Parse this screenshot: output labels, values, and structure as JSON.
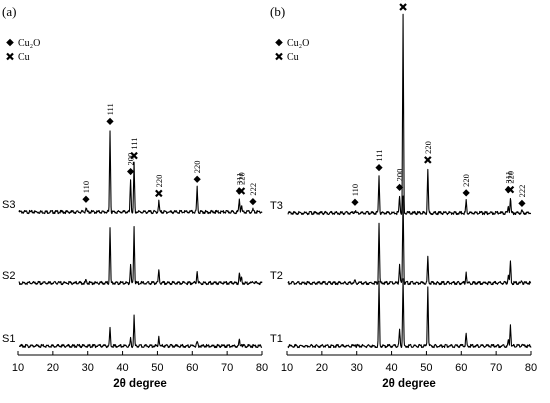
{
  "chart_data": [
    {
      "type": "line",
      "panel_label": "(a)",
      "xlabel": "2θ degree",
      "xlim": [
        10,
        80
      ],
      "xticks": [
        10,
        20,
        30,
        40,
        50,
        60,
        70,
        80
      ],
      "legend": [
        {
          "symbol": "diamond",
          "label": "Cu₂O"
        },
        {
          "symbol": "cross",
          "label": "Cu"
        }
      ],
      "legend_position": "top-left",
      "series": [
        {
          "name": "S3",
          "peaks": [
            [
              29.5,
              8
            ],
            [
              36.4,
              140
            ],
            [
              42.3,
              55
            ],
            [
              43.3,
              82
            ],
            [
              50.4,
              18
            ],
            [
              61.4,
              42
            ],
            [
              73.5,
              22
            ],
            [
              74.1,
              12
            ],
            [
              77.4,
              4
            ]
          ]
        },
        {
          "name": "S2",
          "peaks": [
            [
              29.5,
              5
            ],
            [
              36.4,
              96
            ],
            [
              42.3,
              32
            ],
            [
              43.3,
              96
            ],
            [
              50.4,
              22
            ],
            [
              61.4,
              22
            ],
            [
              73.5,
              18
            ],
            [
              74.1,
              10
            ],
            [
              77.4,
              3
            ]
          ]
        },
        {
          "name": "S1",
          "peaks": [
            [
              36.4,
              30
            ],
            [
              42.3,
              12
            ],
            [
              43.3,
              50
            ],
            [
              50.4,
              18
            ],
            [
              61.4,
              7
            ],
            [
              73.5,
              10
            ],
            [
              74.1,
              4
            ]
          ]
        }
      ],
      "annotations": [
        {
          "x": 29.5,
          "symbol": "diamond",
          "text": "110"
        },
        {
          "x": 36.4,
          "symbol": "diamond",
          "text": "111"
        },
        {
          "x": 42.3,
          "symbol": "diamond",
          "text": "200"
        },
        {
          "x": 43.3,
          "symbol": "cross",
          "text": "111"
        },
        {
          "x": 50.4,
          "symbol": "cross",
          "text": "220"
        },
        {
          "x": 61.4,
          "symbol": "diamond",
          "text": "220"
        },
        {
          "x": 73.5,
          "symbol": "diamond",
          "text": "311"
        },
        {
          "x": 74.1,
          "symbol": "cross",
          "text": "220"
        },
        {
          "x": 77.4,
          "symbol": "diamond",
          "text": "222"
        }
      ]
    },
    {
      "type": "line",
      "panel_label": "(b)",
      "xlabel": "2θ degree",
      "xlim": [
        10,
        80
      ],
      "xticks": [
        10,
        20,
        30,
        40,
        50,
        60,
        70,
        80
      ],
      "legend": [
        {
          "symbol": "diamond",
          "label": "Cu₂O"
        },
        {
          "symbol": "cross",
          "label": "Cu"
        }
      ],
      "legend_position": "top-left",
      "series": [
        {
          "name": "T3",
          "peaks": [
            [
              29.5,
              5
            ],
            [
              36.4,
              68
            ],
            [
              42.3,
              32
            ],
            [
              43.3,
              360
            ],
            [
              50.4,
              82
            ],
            [
              61.4,
              22
            ],
            [
              73.5,
              12
            ],
            [
              74.1,
              28
            ],
            [
              77.4,
              3
            ]
          ]
        },
        {
          "name": "T2",
          "peaks": [
            [
              29.5,
              4
            ],
            [
              36.4,
              110
            ],
            [
              42.3,
              35
            ],
            [
              43.3,
              160
            ],
            [
              50.4,
              48
            ],
            [
              61.4,
              20
            ],
            [
              73.5,
              15
            ],
            [
              74.1,
              40
            ],
            [
              77.4,
              3
            ]
          ]
        },
        {
          "name": "T1",
          "peaks": [
            [
              29.5,
              4
            ],
            [
              36.4,
              115
            ],
            [
              42.3,
              30
            ],
            [
              43.3,
              125
            ],
            [
              50.4,
              110
            ],
            [
              61.4,
              22
            ],
            [
              73.5,
              10
            ],
            [
              74.1,
              40
            ],
            [
              77.4,
              3
            ]
          ]
        }
      ],
      "annotations": [
        {
          "x": 29.5,
          "symbol": "diamond",
          "text": "110"
        },
        {
          "x": 36.4,
          "symbol": "diamond",
          "text": "111"
        },
        {
          "x": 42.3,
          "symbol": "diamond",
          "text": "200"
        },
        {
          "x": 43.3,
          "symbol": "cross",
          "text": "111"
        },
        {
          "x": 50.4,
          "symbol": "cross",
          "text": "220"
        },
        {
          "x": 61.4,
          "symbol": "diamond",
          "text": "220"
        },
        {
          "x": 73.5,
          "symbol": "diamond",
          "text": "311"
        },
        {
          "x": 74.1,
          "symbol": "cross",
          "text": "220"
        },
        {
          "x": 77.4,
          "symbol": "diamond",
          "text": "222"
        }
      ]
    }
  ]
}
